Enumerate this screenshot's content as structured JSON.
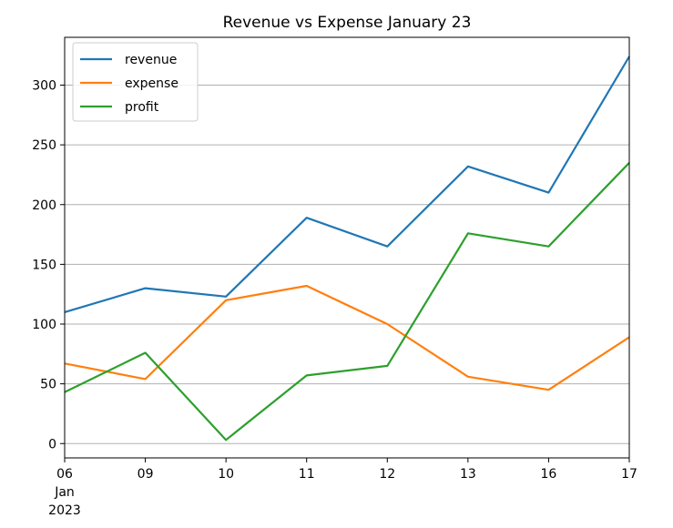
{
  "chart_data": {
    "type": "line",
    "title": "Revenue vs Expense January 23",
    "xlabel": "",
    "ylabel": "",
    "categories": [
      "06",
      "09",
      "10",
      "11",
      "12",
      "13",
      "16",
      "17"
    ],
    "x_sublabels": [
      "Jan",
      "2023"
    ],
    "ylim": [
      -12,
      340
    ],
    "yticks": [
      0,
      50,
      100,
      150,
      200,
      250,
      300
    ],
    "grid": "horizontal",
    "legend_position": "top-left",
    "series": [
      {
        "name": "revenue",
        "color": "#1f77b4",
        "values": [
          110,
          130,
          123,
          189,
          165,
          232,
          210,
          324
        ]
      },
      {
        "name": "expense",
        "color": "#ff7f0e",
        "values": [
          67,
          54,
          120,
          132,
          100,
          56,
          45,
          89
        ]
      },
      {
        "name": "profit",
        "color": "#2ca02c",
        "values": [
          43,
          76,
          3,
          57,
          65,
          176,
          165,
          235
        ]
      }
    ]
  }
}
